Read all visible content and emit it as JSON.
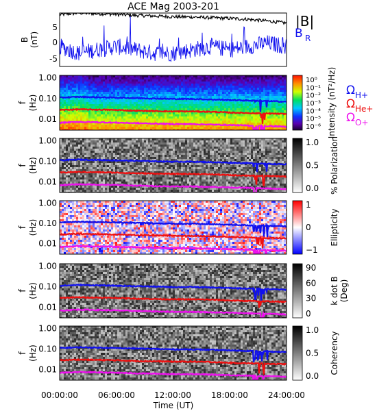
{
  "title": "ACE Mag 2003-201",
  "xlabel": "Time (UT)",
  "xticks": [
    "00:00:00",
    "06:00:00",
    "12:00:00",
    "18:00:00",
    "24:00:00"
  ],
  "legend": {
    "b_total": "|B|",
    "b_r": "B",
    "b_r_sub": "R"
  },
  "omega": {
    "h_sym": "Ω",
    "h_sub": "H+",
    "he_sym": "Ω",
    "he_sub": "He+",
    "o_sym": "Ω",
    "o_sub": "O+"
  },
  "colors": {
    "h": "#1010ee",
    "he": "#ee1010",
    "o": "#ee10ee",
    "btot": "#000000",
    "br": "#1010ee"
  },
  "chart_data": [
    {
      "type": "line",
      "panel": "B",
      "ylabel": "B",
      "yunit": "(nT)",
      "ylim": [
        -8,
        8
      ],
      "yticks": [
        "5",
        "0",
        "-5"
      ],
      "xlim_hours": [
        0,
        24
      ],
      "series": [
        {
          "name": "|B|",
          "x_hours": [
            0,
            2,
            4,
            6,
            8,
            10,
            12,
            14,
            16,
            18,
            20,
            22,
            24
          ],
          "values": [
            7.5,
            8.0,
            7.8,
            7.6,
            7.3,
            7.1,
            6.9,
            6.8,
            6.6,
            6.4,
            6.1,
            5.6,
            5.0
          ]
        },
        {
          "name": "B_R",
          "x_hours": [
            0,
            2,
            4,
            6,
            8,
            10,
            12,
            14,
            16,
            18,
            20,
            22,
            24
          ],
          "values": [
            -2,
            -4,
            -3,
            -2,
            -3,
            -4,
            -4,
            -3,
            -2,
            -3,
            -2,
            -1,
            -2
          ]
        }
      ]
    },
    {
      "type": "heatmap",
      "panel": "Intensity",
      "ylabel": "f",
      "yunit": "(Hz)",
      "yticks": [
        "1.00",
        "0.10",
        "0.01"
      ],
      "colorbar_label": "Intensity (nT²/Hz)",
      "colorbar_ticks": [
        "10⁰",
        "10⁻¹",
        "10⁻²",
        "10⁻³",
        "10⁻⁴",
        "10⁻⁵",
        "10⁻⁶"
      ],
      "palette": "rainbow"
    },
    {
      "type": "heatmap",
      "panel": "Polarization",
      "ylabel": "f",
      "yunit": "(Hz)",
      "yticks": [
        "1.00",
        "0.10",
        "0.01"
      ],
      "colorbar_label": "% Polarization",
      "colorbar_ticks": [
        "1.0",
        "0.5",
        "0.0"
      ],
      "palette": "gray"
    },
    {
      "type": "heatmap",
      "panel": "Ellipticity",
      "ylabel": "f",
      "yunit": "(Hz)",
      "yticks": [
        "1.00",
        "0.10",
        "0.01"
      ],
      "colorbar_label": "Ellipticity",
      "colorbar_ticks": [
        "1",
        "0",
        "−1"
      ],
      "palette": "bwr"
    },
    {
      "type": "heatmap",
      "panel": "k dot B",
      "ylabel": "f",
      "yunit": "(Hz)",
      "yticks": [
        "1.00",
        "0.10",
        "0.01"
      ],
      "colorbar_label": "k dot B",
      "colorbar_unit": "(Deg)",
      "colorbar_ticks": [
        "90",
        "60",
        "30",
        "0"
      ],
      "palette": "gray"
    },
    {
      "type": "heatmap",
      "panel": "Coherency",
      "ylabel": "f",
      "yunit": "(Hz)",
      "yticks": [
        "1.00",
        "0.10",
        "0.01"
      ],
      "colorbar_label": "Coherency",
      "colorbar_ticks": [
        "1.0",
        "0.5",
        "0.0"
      ],
      "palette": "gray"
    }
  ],
  "gyrofrequency_lines": {
    "x_hours": [
      0,
      2,
      4,
      6,
      8,
      10,
      12,
      14,
      16,
      18,
      20,
      22,
      24
    ],
    "H+": [
      0.11,
      0.12,
      0.115,
      0.11,
      0.105,
      0.1,
      0.095,
      0.095,
      0.09,
      0.085,
      0.08,
      0.075,
      0.07
    ],
    "He+": [
      0.028,
      0.03,
      0.029,
      0.028,
      0.026,
      0.025,
      0.024,
      0.024,
      0.023,
      0.021,
      0.02,
      0.019,
      0.018
    ],
    "O+": [
      0.0068,
      0.0075,
      0.0072,
      0.0069,
      0.0065,
      0.0062,
      0.0059,
      0.0059,
      0.0056,
      0.0053,
      0.005,
      0.0047,
      0.0044
    ]
  }
}
